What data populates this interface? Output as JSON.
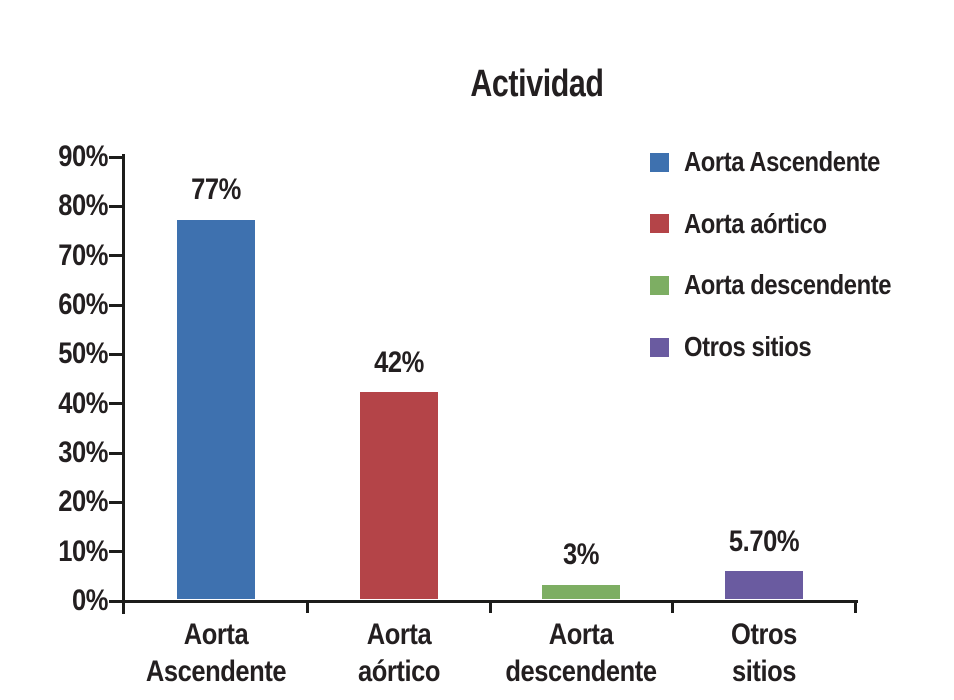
{
  "page": {
    "background": "#ffffff"
  },
  "chart_data": {
    "type": "bar",
    "title": "Actividad",
    "categories": [
      "Aorta Ascendente",
      "Aorta aórtico",
      "Aorta descendente",
      "Otros sitios"
    ],
    "category_label_lines": [
      [
        "Aorta",
        "Ascendente"
      ],
      [
        "Aorta",
        "aórtico"
      ],
      [
        "Aorta",
        "descendente"
      ],
      [
        "Otros",
        "sitios"
      ]
    ],
    "values": [
      77,
      42,
      3,
      5.7
    ],
    "value_labels": [
      "77%",
      "42%",
      "3%",
      "5.70%"
    ],
    "bar_colors": [
      "#3e71af",
      "#b44448",
      "#7dae63",
      "#6a5ba0"
    ],
    "y_tick_labels": [
      "0%",
      "10%",
      "20%",
      "30%",
      "40%",
      "50%",
      "60%",
      "70%",
      "80%",
      "90%"
    ],
    "ylim": [
      0,
      90
    ],
    "xlabel": "",
    "ylabel": "",
    "grid": false,
    "legend_position": "right",
    "legend": [
      {
        "label": "Aorta Ascendente",
        "color": "#3e71af"
      },
      {
        "label": "Aorta aórtico",
        "color": "#b44448"
      },
      {
        "label": "Aorta descendente",
        "color": "#7dae63"
      },
      {
        "label": "Otros sitios",
        "color": "#6a5ba0"
      }
    ],
    "axis_color": "#1d1d1b",
    "text_color": "#231f20"
  }
}
